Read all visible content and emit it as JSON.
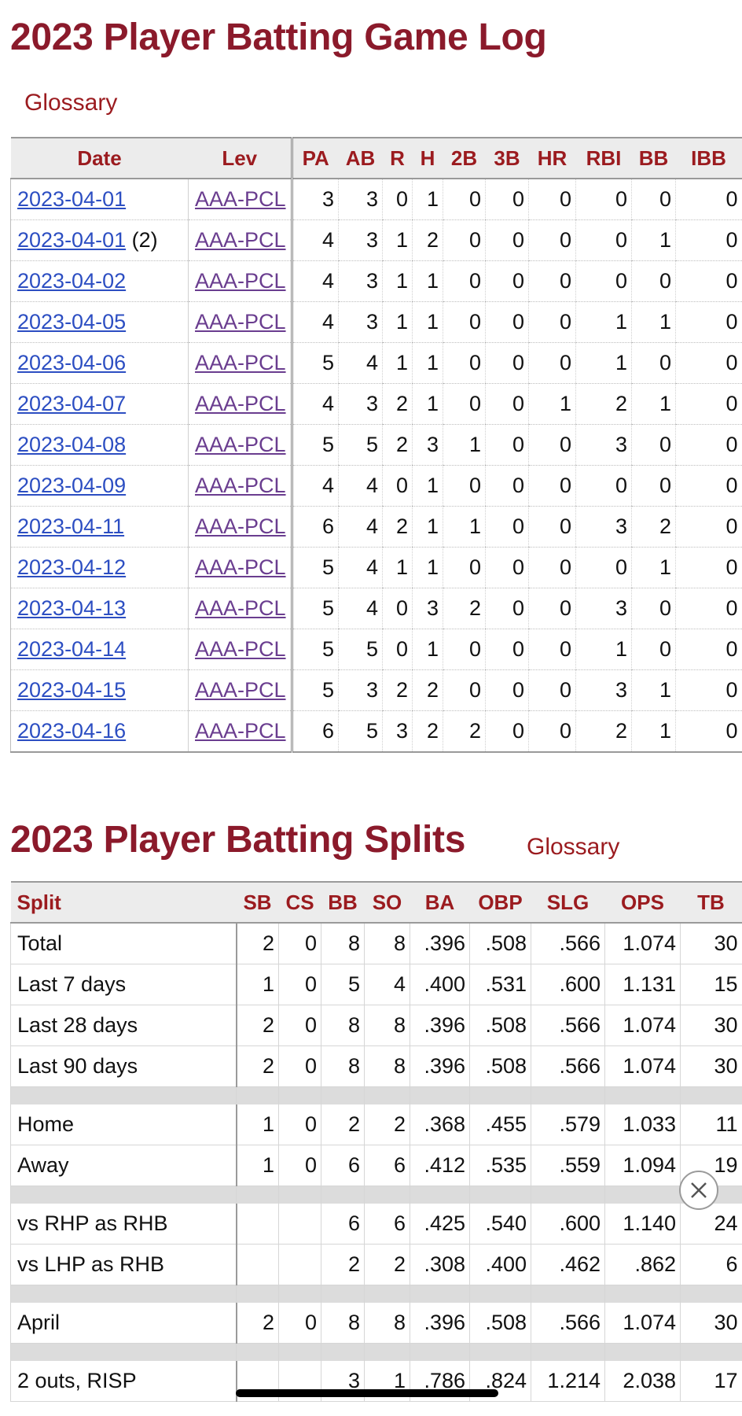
{
  "gamelog": {
    "title": "2023 Player Batting Game Log",
    "glossary": "Glossary",
    "columns": [
      "Date",
      "Lev",
      "PA",
      "AB",
      "R",
      "H",
      "2B",
      "3B",
      "HR",
      "RBI",
      "BB",
      "IBB"
    ],
    "rows": [
      {
        "date": "2023-04-01",
        "gm": "",
        "lev": "AAA-PCL",
        "pa": "3",
        "ab": "3",
        "r": "0",
        "h": "1",
        "d2b": "0",
        "t3b": "0",
        "hr": "0",
        "rbi": "0",
        "bb": "0",
        "ibb": "0"
      },
      {
        "date": "2023-04-01",
        "gm": "(2)",
        "lev": "AAA-PCL",
        "pa": "4",
        "ab": "3",
        "r": "1",
        "h": "2",
        "d2b": "0",
        "t3b": "0",
        "hr": "0",
        "rbi": "0",
        "bb": "1",
        "ibb": "0"
      },
      {
        "date": "2023-04-02",
        "gm": "",
        "lev": "AAA-PCL",
        "pa": "4",
        "ab": "3",
        "r": "1",
        "h": "1",
        "d2b": "0",
        "t3b": "0",
        "hr": "0",
        "rbi": "0",
        "bb": "0",
        "ibb": "0"
      },
      {
        "date": "2023-04-05",
        "gm": "",
        "lev": "AAA-PCL",
        "pa": "4",
        "ab": "3",
        "r": "1",
        "h": "1",
        "d2b": "0",
        "t3b": "0",
        "hr": "0",
        "rbi": "1",
        "bb": "1",
        "ibb": "0"
      },
      {
        "date": "2023-04-06",
        "gm": "",
        "lev": "AAA-PCL",
        "pa": "5",
        "ab": "4",
        "r": "1",
        "h": "1",
        "d2b": "0",
        "t3b": "0",
        "hr": "0",
        "rbi": "1",
        "bb": "0",
        "ibb": "0"
      },
      {
        "date": "2023-04-07",
        "gm": "",
        "lev": "AAA-PCL",
        "pa": "4",
        "ab": "3",
        "r": "2",
        "h": "1",
        "d2b": "0",
        "t3b": "0",
        "hr": "1",
        "rbi": "2",
        "bb": "1",
        "ibb": "0"
      },
      {
        "date": "2023-04-08",
        "gm": "",
        "lev": "AAA-PCL",
        "pa": "5",
        "ab": "5",
        "r": "2",
        "h": "3",
        "d2b": "1",
        "t3b": "0",
        "hr": "0",
        "rbi": "3",
        "bb": "0",
        "ibb": "0"
      },
      {
        "date": "2023-04-09",
        "gm": "",
        "lev": "AAA-PCL",
        "pa": "4",
        "ab": "4",
        "r": "0",
        "h": "1",
        "d2b": "0",
        "t3b": "0",
        "hr": "0",
        "rbi": "0",
        "bb": "0",
        "ibb": "0"
      },
      {
        "date": "2023-04-11",
        "gm": "",
        "lev": "AAA-PCL",
        "pa": "6",
        "ab": "4",
        "r": "2",
        "h": "1",
        "d2b": "1",
        "t3b": "0",
        "hr": "0",
        "rbi": "3",
        "bb": "2",
        "ibb": "0"
      },
      {
        "date": "2023-04-12",
        "gm": "",
        "lev": "AAA-PCL",
        "pa": "5",
        "ab": "4",
        "r": "1",
        "h": "1",
        "d2b": "0",
        "t3b": "0",
        "hr": "0",
        "rbi": "0",
        "bb": "1",
        "ibb": "0"
      },
      {
        "date": "2023-04-13",
        "gm": "",
        "lev": "AAA-PCL",
        "pa": "5",
        "ab": "4",
        "r": "0",
        "h": "3",
        "d2b": "2",
        "t3b": "0",
        "hr": "0",
        "rbi": "3",
        "bb": "0",
        "ibb": "0"
      },
      {
        "date": "2023-04-14",
        "gm": "",
        "lev": "AAA-PCL",
        "pa": "5",
        "ab": "5",
        "r": "0",
        "h": "1",
        "d2b": "0",
        "t3b": "0",
        "hr": "0",
        "rbi": "1",
        "bb": "0",
        "ibb": "0"
      },
      {
        "date": "2023-04-15",
        "gm": "",
        "lev": "AAA-PCL",
        "pa": "5",
        "ab": "3",
        "r": "2",
        "h": "2",
        "d2b": "0",
        "t3b": "0",
        "hr": "0",
        "rbi": "3",
        "bb": "1",
        "ibb": "0"
      },
      {
        "date": "2023-04-16",
        "gm": "",
        "lev": "AAA-PCL",
        "pa": "6",
        "ab": "5",
        "r": "3",
        "h": "2",
        "d2b": "2",
        "t3b": "0",
        "hr": "0",
        "rbi": "2",
        "bb": "1",
        "ibb": "0"
      }
    ]
  },
  "splits": {
    "title": "2023 Player Batting Splits",
    "glossary": "Glossary",
    "columns": [
      "Split",
      "SB",
      "CS",
      "BB",
      "SO",
      "BA",
      "OBP",
      "SLG",
      "OPS",
      "TB"
    ],
    "rows": [
      {
        "split": "Total",
        "sb": "2",
        "cs": "0",
        "bb": "8",
        "so": "8",
        "ba": ".396",
        "obp": ".508",
        "slg": ".566",
        "ops": "1.074",
        "tb": "30"
      },
      {
        "split": "Last 7 days",
        "sb": "1",
        "cs": "0",
        "bb": "5",
        "so": "4",
        "ba": ".400",
        "obp": ".531",
        "slg": ".600",
        "ops": "1.131",
        "tb": "15"
      },
      {
        "split": "Last 28 days",
        "sb": "2",
        "cs": "0",
        "bb": "8",
        "so": "8",
        "ba": ".396",
        "obp": ".508",
        "slg": ".566",
        "ops": "1.074",
        "tb": "30"
      },
      {
        "split": "Last 90 days",
        "sb": "2",
        "cs": "0",
        "bb": "8",
        "so": "8",
        "ba": ".396",
        "obp": ".508",
        "slg": ".566",
        "ops": "1.074",
        "tb": "30"
      },
      {
        "spacer": true
      },
      {
        "split": "Home",
        "sb": "1",
        "cs": "0",
        "bb": "2",
        "so": "2",
        "ba": ".368",
        "obp": ".455",
        "slg": ".579",
        "ops": "1.033",
        "tb": "11"
      },
      {
        "split": "Away",
        "sb": "1",
        "cs": "0",
        "bb": "6",
        "so": "6",
        "ba": ".412",
        "obp": ".535",
        "slg": ".559",
        "ops": "1.094",
        "tb": "19"
      },
      {
        "spacer": true
      },
      {
        "split": "vs RHP as RHB",
        "sb": "",
        "cs": "",
        "bb": "6",
        "so": "6",
        "ba": ".425",
        "obp": ".540",
        "slg": ".600",
        "ops": "1.140",
        "tb": "24"
      },
      {
        "split": "vs LHP as RHB",
        "sb": "",
        "cs": "",
        "bb": "2",
        "so": "2",
        "ba": ".308",
        "obp": ".400",
        "slg": ".462",
        "ops": ".862",
        "tb": "6"
      },
      {
        "spacer": true
      },
      {
        "split": "April",
        "sb": "2",
        "cs": "0",
        "bb": "8",
        "so": "8",
        "ba": ".396",
        "obp": ".508",
        "slg": ".566",
        "ops": "1.074",
        "tb": "30"
      },
      {
        "spacer": true
      },
      {
        "split": "2 outs, RISP",
        "sb": "",
        "cs": "",
        "bb": "3",
        "so": "1",
        "ba": ".786",
        "obp": ".824",
        "slg": "1.214",
        "ops": "2.038",
        "tb": "17"
      }
    ]
  },
  "icons": {
    "close": "close-circle-icon"
  },
  "colors": {
    "title": "#8b1a2b",
    "header_text": "#9b1b1f",
    "date_link": "#2c4ec2",
    "lev_link": "#6a3d8f"
  }
}
